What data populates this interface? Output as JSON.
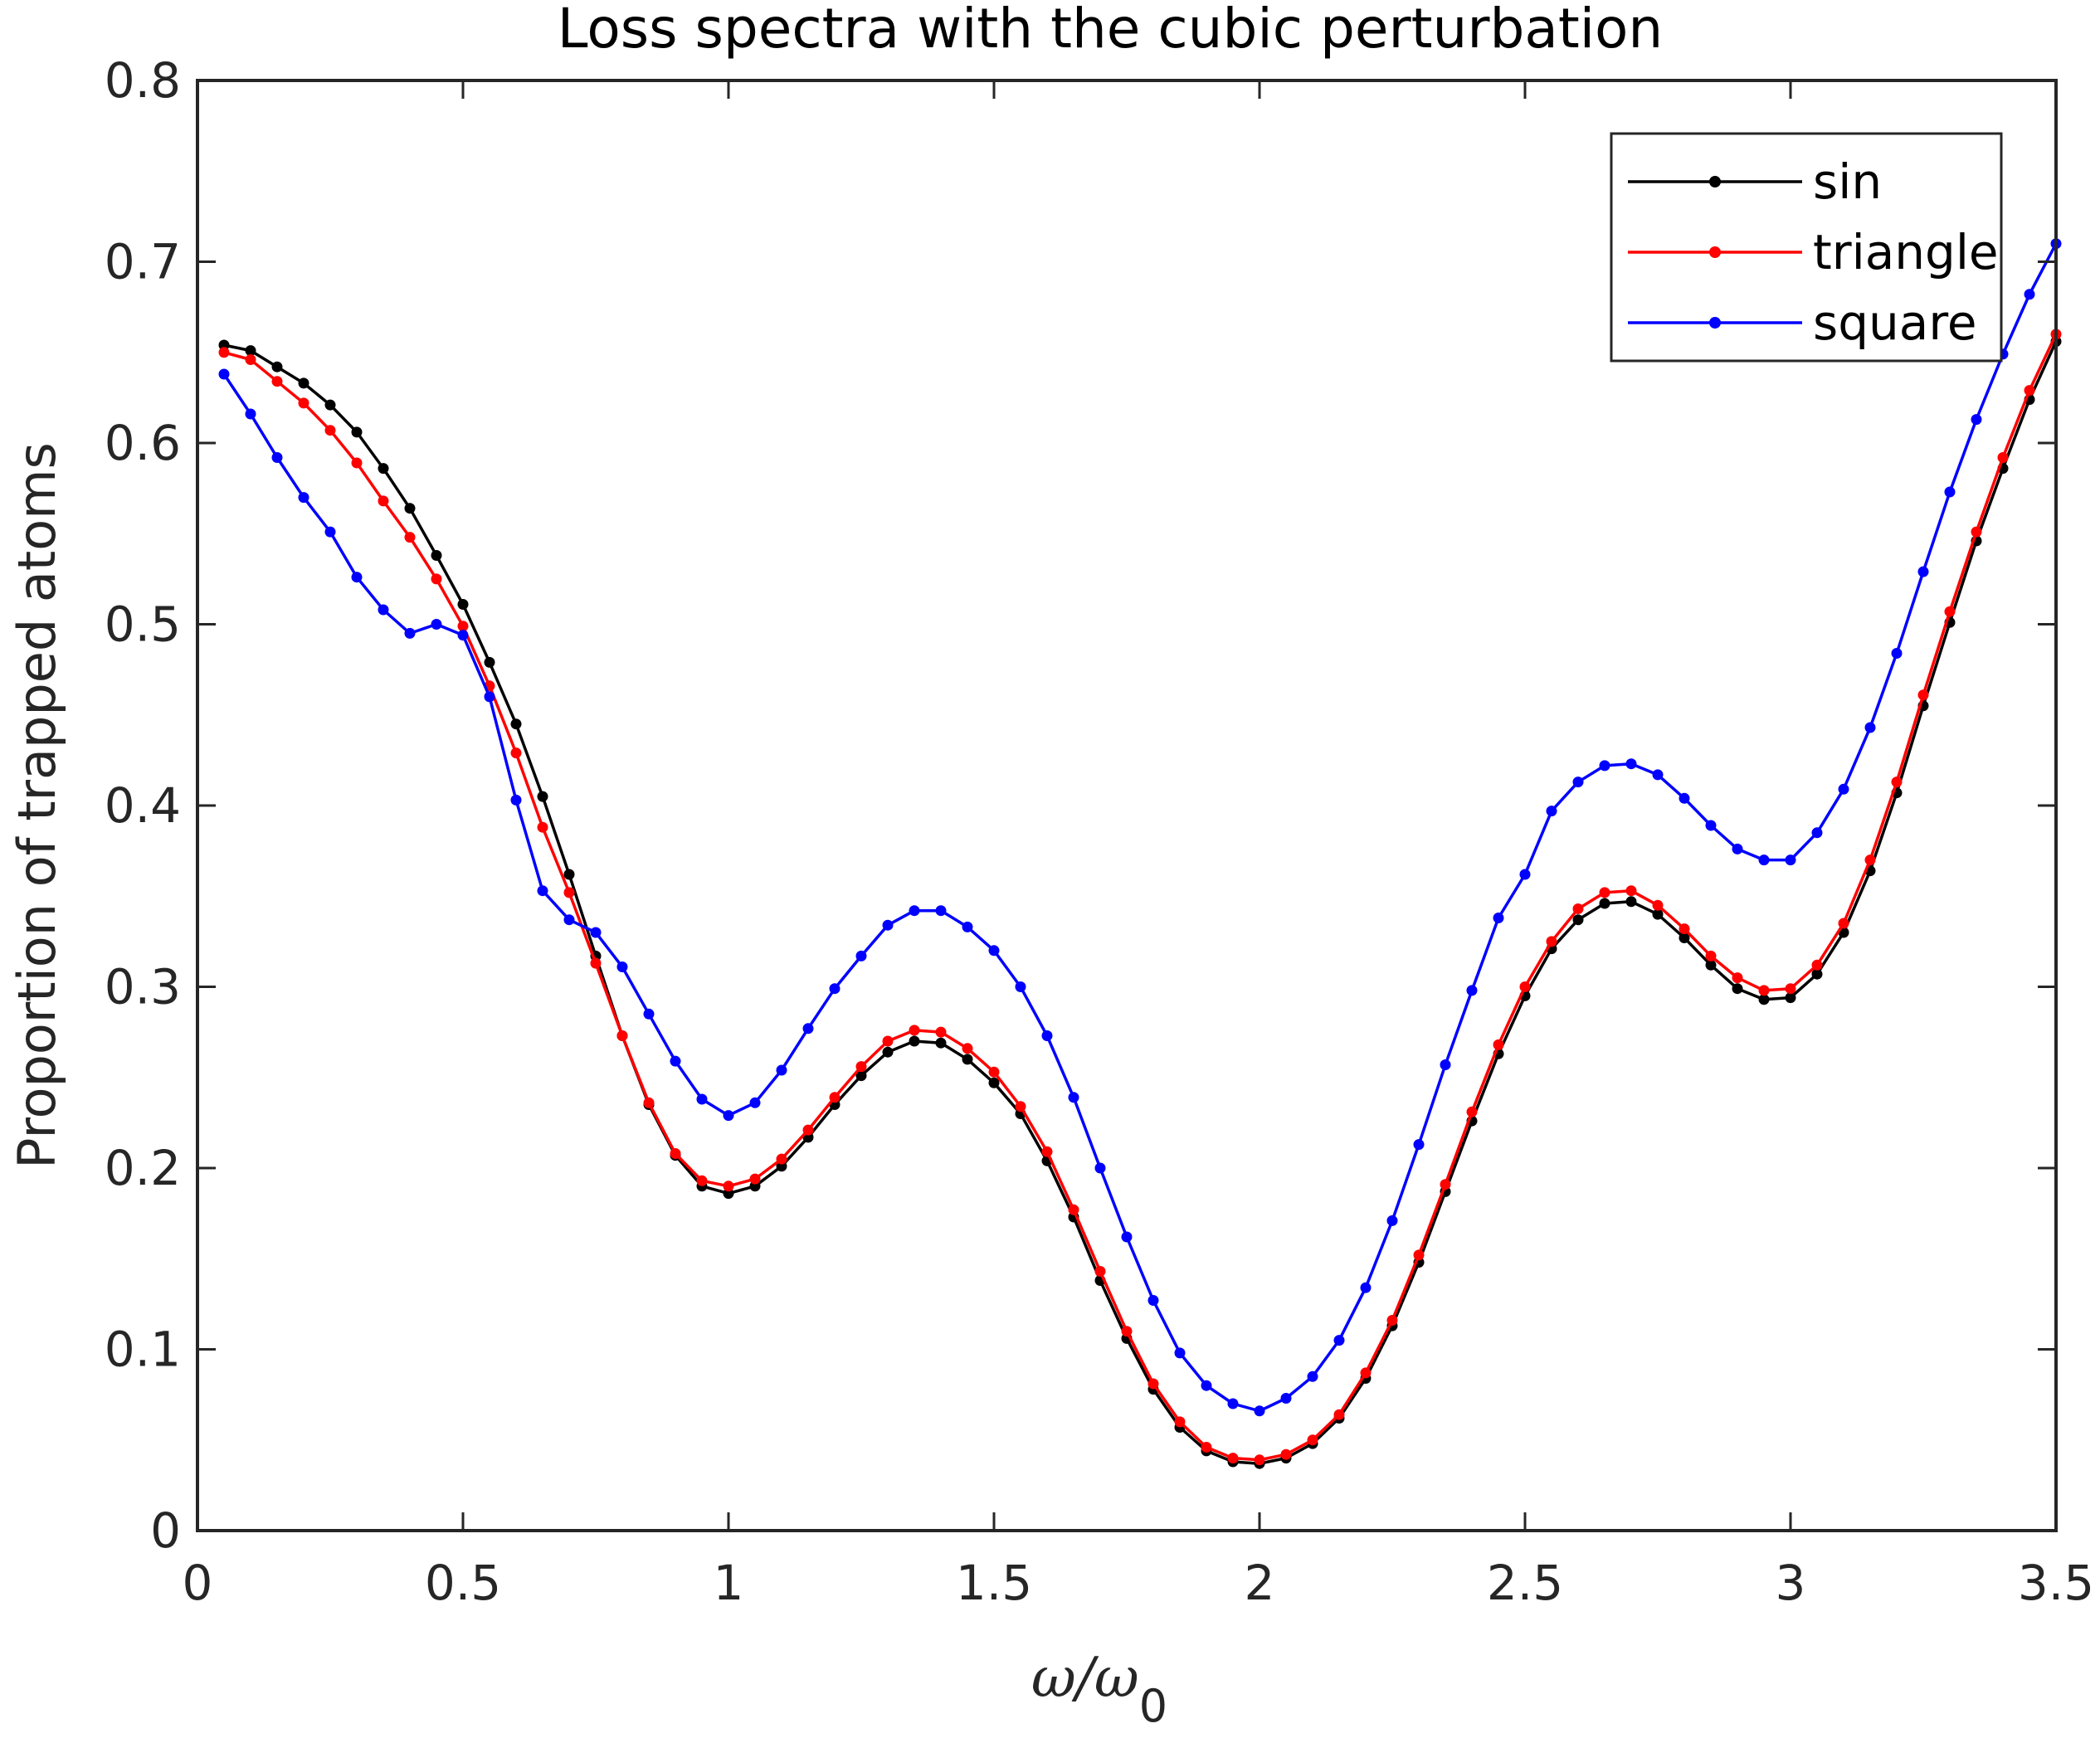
{
  "chart_data": {
    "type": "line",
    "title": "Loss spectra with the cubic perturbation",
    "xlabel_main": "ω/ω",
    "xlabel_sub": "0",
    "ylabel": "Proportion of trapped atoms",
    "xlim": [
      0,
      3.5
    ],
    "ylim": [
      0,
      0.8
    ],
    "xticks": [
      0,
      0.5,
      1,
      1.5,
      2,
      2.5,
      3,
      3.5
    ],
    "xtick_labels": [
      "0",
      "0.5",
      "1",
      "1.5",
      "2",
      "2.5",
      "3",
      "3.5"
    ],
    "yticks": [
      0,
      0.1,
      0.2,
      0.3,
      0.4,
      0.5,
      0.6,
      0.7,
      0.8
    ],
    "ytick_labels": [
      "0",
      "0.1",
      "0.2",
      "0.3",
      "0.4",
      "0.5",
      "0.6",
      "0.7",
      "0.8"
    ],
    "grid": false,
    "legend_position": "top-right",
    "x": [
      0.05,
      0.1,
      0.15,
      0.2,
      0.25,
      0.3,
      0.35,
      0.4,
      0.45,
      0.5,
      0.55,
      0.6,
      0.65,
      0.7,
      0.75,
      0.8,
      0.85,
      0.9,
      0.95,
      1.0,
      1.05,
      1.1,
      1.15,
      1.2,
      1.25,
      1.3,
      1.35,
      1.4,
      1.45,
      1.5,
      1.55,
      1.6,
      1.65,
      1.7,
      1.75,
      1.8,
      1.85,
      1.9,
      1.95,
      2.0,
      2.05,
      2.1,
      2.15,
      2.2,
      2.25,
      2.3,
      2.35,
      2.4,
      2.45,
      2.5,
      2.55,
      2.6,
      2.65,
      2.7,
      2.75,
      2.8,
      2.85,
      2.9,
      2.95,
      3.0,
      3.05,
      3.1,
      3.15,
      3.2,
      3.25,
      3.3,
      3.35,
      3.4,
      3.45,
      3.5
    ],
    "series": [
      {
        "name": "sin",
        "color": "#000000",
        "values": [
          0.654,
          0.651,
          0.642,
          0.633,
          0.621,
          0.606,
          0.586,
          0.564,
          0.538,
          0.511,
          0.479,
          0.445,
          0.405,
          0.362,
          0.317,
          0.273,
          0.235,
          0.207,
          0.19,
          0.186,
          0.19,
          0.201,
          0.217,
          0.235,
          0.251,
          0.264,
          0.27,
          0.269,
          0.26,
          0.247,
          0.23,
          0.204,
          0.173,
          0.138,
          0.106,
          0.078,
          0.057,
          0.044,
          0.038,
          0.037,
          0.04,
          0.048,
          0.062,
          0.084,
          0.113,
          0.148,
          0.187,
          0.226,
          0.263,
          0.295,
          0.321,
          0.337,
          0.346,
          0.347,
          0.34,
          0.327,
          0.312,
          0.299,
          0.293,
          0.294,
          0.307,
          0.33,
          0.364,
          0.407,
          0.455,
          0.501,
          0.546,
          0.586,
          0.624,
          0.656
        ]
      },
      {
        "name": "triangle",
        "color": "#ff0000",
        "values": [
          0.65,
          0.646,
          0.634,
          0.622,
          0.607,
          0.589,
          0.568,
          0.548,
          0.525,
          0.499,
          0.466,
          0.429,
          0.388,
          0.352,
          0.313,
          0.273,
          0.236,
          0.208,
          0.193,
          0.19,
          0.194,
          0.205,
          0.221,
          0.239,
          0.256,
          0.27,
          0.276,
          0.275,
          0.266,
          0.253,
          0.234,
          0.209,
          0.177,
          0.143,
          0.11,
          0.081,
          0.06,
          0.046,
          0.04,
          0.039,
          0.042,
          0.05,
          0.064,
          0.087,
          0.116,
          0.152,
          0.191,
          0.231,
          0.268,
          0.3,
          0.325,
          0.343,
          0.352,
          0.353,
          0.345,
          0.332,
          0.317,
          0.305,
          0.298,
          0.299,
          0.312,
          0.335,
          0.37,
          0.413,
          0.461,
          0.507,
          0.551,
          0.592,
          0.629,
          0.66
        ]
      },
      {
        "name": "square",
        "color": "#0000ff",
        "values": [
          0.638,
          0.616,
          0.592,
          0.57,
          0.551,
          0.526,
          0.508,
          0.495,
          0.5,
          0.494,
          0.46,
          0.403,
          0.353,
          0.337,
          0.33,
          0.311,
          0.285,
          0.259,
          0.238,
          0.229,
          0.236,
          0.254,
          0.277,
          0.299,
          0.317,
          0.334,
          0.342,
          0.342,
          0.333,
          0.32,
          0.3,
          0.273,
          0.239,
          0.2,
          0.162,
          0.127,
          0.098,
          0.08,
          0.07,
          0.066,
          0.073,
          0.085,
          0.105,
          0.134,
          0.171,
          0.213,
          0.257,
          0.298,
          0.338,
          0.362,
          0.397,
          0.413,
          0.422,
          0.423,
          0.417,
          0.404,
          0.389,
          0.376,
          0.37,
          0.37,
          0.385,
          0.409,
          0.443,
          0.484,
          0.529,
          0.573,
          0.613,
          0.649,
          0.682,
          0.71
        ]
      }
    ]
  }
}
